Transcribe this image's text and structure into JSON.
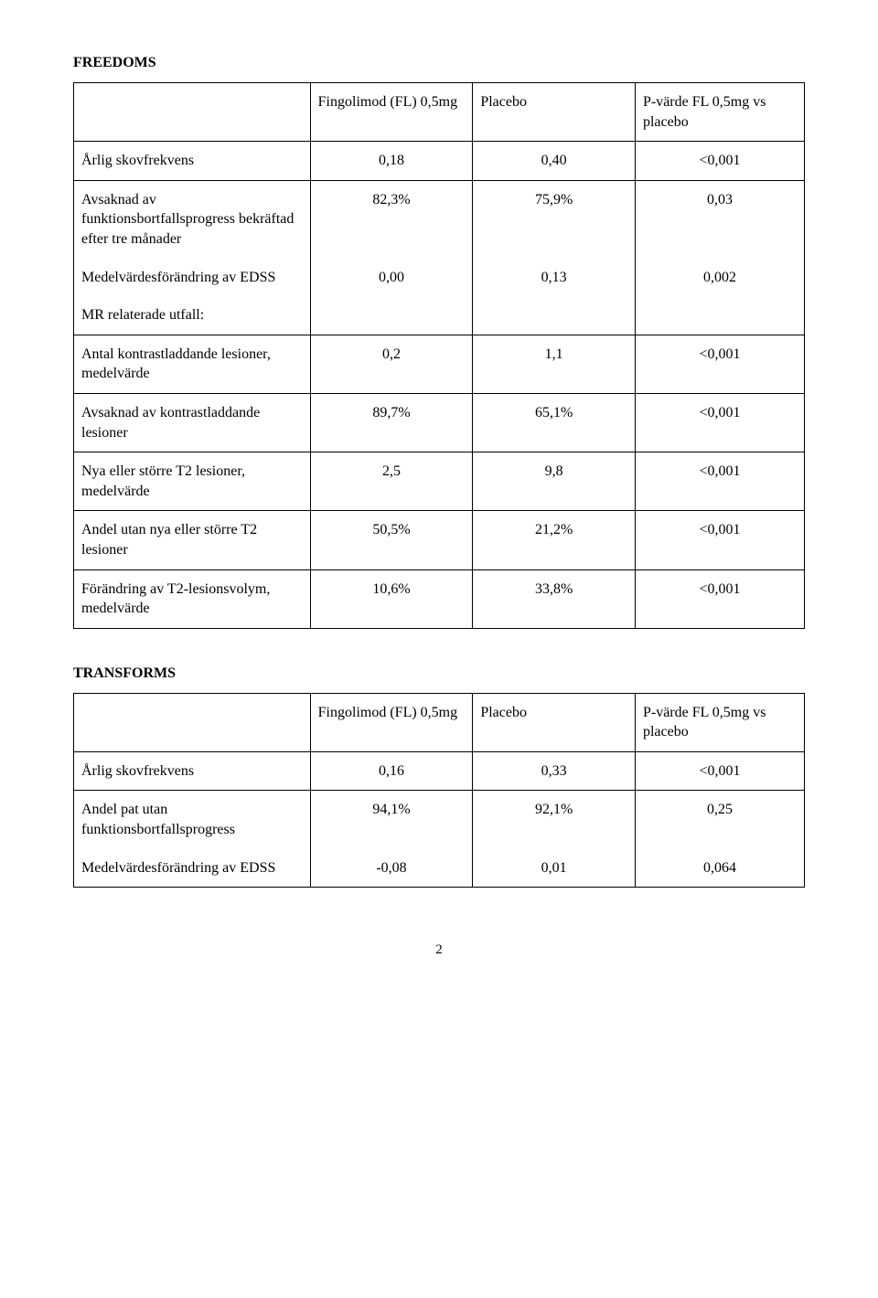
{
  "table1": {
    "title": "FREEDOMS",
    "header": {
      "colA": "Fingolimod (FL) 0,5mg",
      "colB": "Placebo",
      "colC": "P-värde FL 0,5mg vs placebo"
    },
    "rows": [
      {
        "label": "Årlig skovfrekvens",
        "a": "0,18",
        "b": "0,40",
        "c": "<0,001"
      },
      {
        "label": "Avsaknad av funktionsbortfallsprogress bekräftad efter tre månader",
        "a": "82,3%",
        "b": "75,9%",
        "c": "0,03"
      },
      {
        "label": "Medelvärdesförändring av EDSS",
        "a": "0,00",
        "b": "0,13",
        "c": "0,002"
      },
      {
        "label": "MR relaterade utfall:",
        "a": "",
        "b": "",
        "c": ""
      },
      {
        "label": "Antal kontrastladdande lesioner, medelvärde",
        "a": "0,2",
        "b": "1,1",
        "c": "<0,001"
      },
      {
        "label": "Avsaknad av kontrastladdande lesioner",
        "a": "89,7%",
        "b": "65,1%",
        "c": "<0,001"
      },
      {
        "label": "Nya eller större T2 lesioner, medelvärde",
        "a": "2,5",
        "b": "9,8",
        "c": "<0,001"
      },
      {
        "label": "Andel utan nya eller större T2 lesioner",
        "a": "50,5%",
        "b": "21,2%",
        "c": "<0,001"
      },
      {
        "label": "Förändring av T2-lesionsvolym, medelvärde",
        "a": "10,6%",
        "b": "33,8%",
        "c": "<0,001"
      }
    ]
  },
  "table2": {
    "title": "TRANSFORMS",
    "header": {
      "colA": "Fingolimod (FL) 0,5mg",
      "colB": "Placebo",
      "colC": "P-värde FL 0,5mg vs placebo"
    },
    "rows": [
      {
        "label": "Årlig skovfrekvens",
        "a": "0,16",
        "b": "0,33",
        "c": "<0,001"
      },
      {
        "label": "Andel pat utan funktionsbortfallsprogress",
        "a": "94,1%",
        "b": "92,1%",
        "c": "0,25"
      },
      {
        "label": "Medelvärdesförändring av EDSS",
        "a": "-0,08",
        "b": "0,01",
        "c": "0,064"
      }
    ]
  },
  "pageNumber": "2"
}
